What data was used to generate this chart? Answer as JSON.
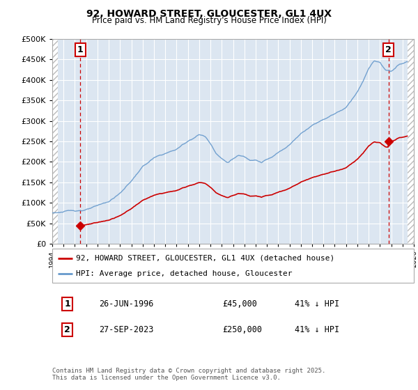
{
  "title": "92, HOWARD STREET, GLOUCESTER, GL1 4UX",
  "subtitle": "Price paid vs. HM Land Registry's House Price Index (HPI)",
  "legend_line1": "92, HOWARD STREET, GLOUCESTER, GL1 4UX (detached house)",
  "legend_line2": "HPI: Average price, detached house, Gloucester",
  "annotation1_date": "26-JUN-1996",
  "annotation1_price": "£45,000",
  "annotation1_hpi": "41% ↓ HPI",
  "annotation2_date": "27-SEP-2023",
  "annotation2_price": "£250,000",
  "annotation2_hpi": "41% ↓ HPI",
  "footer": "Contains HM Land Registry data © Crown copyright and database right 2025.\nThis data is licensed under the Open Government Licence v3.0.",
  "xmin": 1994,
  "xmax": 2026,
  "ymin": 0,
  "ymax": 500000,
  "yticks": [
    0,
    50000,
    100000,
    150000,
    200000,
    250000,
    300000,
    350000,
    400000,
    450000,
    500000
  ],
  "bg_color": "#dce6f1",
  "red_line_color": "#cc0000",
  "blue_line_color": "#6699cc",
  "marker1_x": 1996.49,
  "marker1_y": 45000,
  "marker2_x": 2023.75,
  "marker2_y": 250000,
  "vline1_x": 1996.49,
  "vline2_x": 2023.75,
  "hatch_left_end": 1994.5,
  "hatch_right_start": 2025.42,
  "fig_width": 6.0,
  "fig_height": 5.6
}
